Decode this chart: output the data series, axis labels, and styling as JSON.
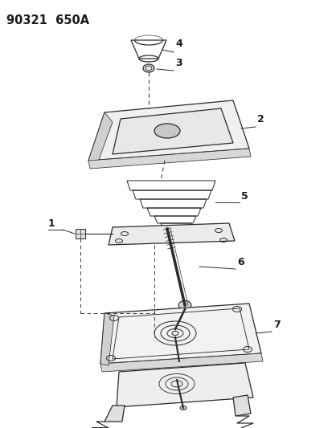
{
  "title": "90321  650A",
  "bg_color": "#ffffff",
  "line_color": "#2a2a2a",
  "label_color": "#1a1a1a",
  "title_fontsize": 10.5,
  "label_fontsize": 9,
  "figsize": [
    4.14,
    5.33
  ],
  "dpi": 100
}
